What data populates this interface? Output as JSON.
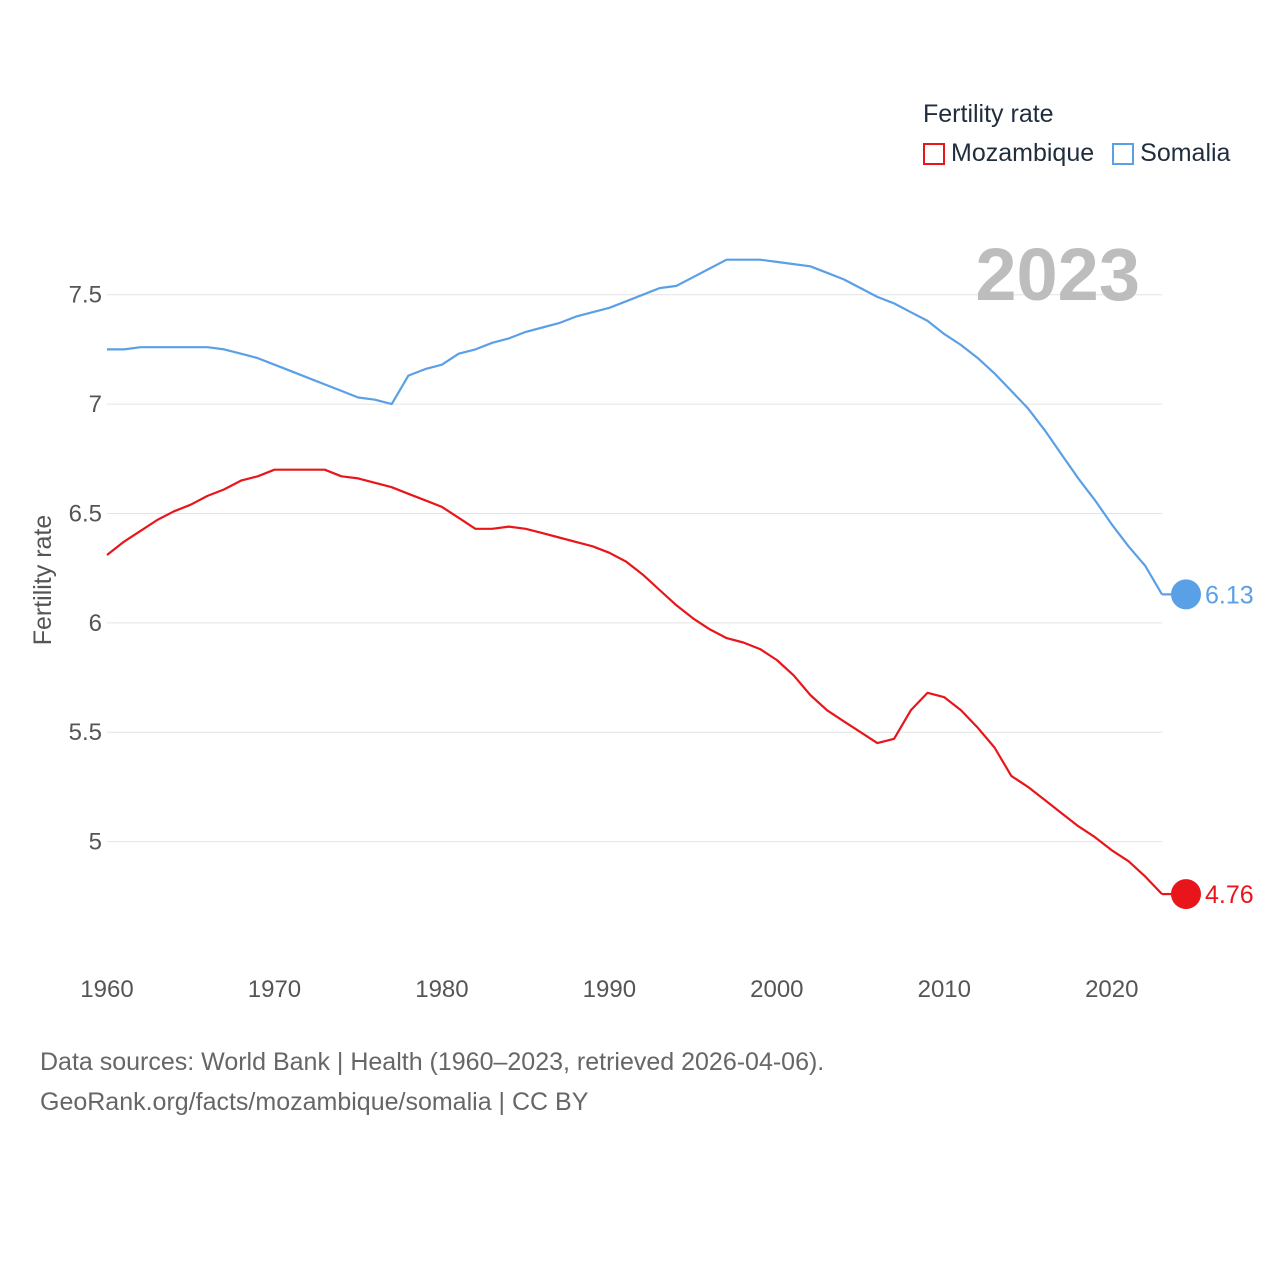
{
  "legend": {
    "title": "Fertility rate",
    "items": [
      {
        "name": "Mozambique",
        "color": "#e8161b"
      },
      {
        "name": "Somalia",
        "color": "#5aa0e6"
      }
    ]
  },
  "footer": {
    "line1": "Data sources: World Bank | Health (1960–2023, retrieved 2026-04-06).",
    "line2": "GeoRank.org/facts/mozambique/somalia | CC BY"
  },
  "chart_data": {
    "type": "line",
    "title": "Fertility rate",
    "year_label": "2023",
    "ylabel": "Fertility rate",
    "xlabel": "",
    "xlim": [
      1960,
      2023
    ],
    "ylim": [
      4.55,
      7.75
    ],
    "x_ticks": [
      1960,
      1970,
      1980,
      1990,
      2000,
      2010,
      2020
    ],
    "y_ticks": [
      5,
      5.5,
      6,
      6.5,
      7,
      7.5
    ],
    "y_tick_labels": [
      "5",
      "5.5",
      "6",
      "6.5",
      "7",
      "7.5"
    ],
    "grid": true,
    "legend_position": "top-right",
    "x": [
      1960,
      1961,
      1962,
      1963,
      1964,
      1965,
      1966,
      1967,
      1968,
      1969,
      1970,
      1971,
      1972,
      1973,
      1974,
      1975,
      1976,
      1977,
      1978,
      1979,
      1980,
      1981,
      1982,
      1983,
      1984,
      1985,
      1986,
      1987,
      1988,
      1989,
      1990,
      1991,
      1992,
      1993,
      1994,
      1995,
      1996,
      1997,
      1998,
      1999,
      2000,
      2001,
      2002,
      2003,
      2004,
      2005,
      2006,
      2007,
      2008,
      2009,
      2010,
      2011,
      2012,
      2013,
      2014,
      2015,
      2016,
      2017,
      2018,
      2019,
      2020,
      2021,
      2022,
      2023
    ],
    "series": [
      {
        "name": "Mozambique",
        "color": "#e8161b",
        "end_label": "4.76",
        "values": [
          6.31,
          6.37,
          6.42,
          6.47,
          6.51,
          6.54,
          6.58,
          6.61,
          6.65,
          6.67,
          6.7,
          6.7,
          6.7,
          6.7,
          6.67,
          6.66,
          6.64,
          6.62,
          6.59,
          6.56,
          6.53,
          6.48,
          6.43,
          6.43,
          6.44,
          6.43,
          6.41,
          6.39,
          6.37,
          6.35,
          6.32,
          6.28,
          6.22,
          6.15,
          6.08,
          6.02,
          5.97,
          5.93,
          5.91,
          5.88,
          5.83,
          5.76,
          5.67,
          5.6,
          5.55,
          5.5,
          5.45,
          5.47,
          5.6,
          5.68,
          5.66,
          5.6,
          5.52,
          5.43,
          5.3,
          5.25,
          5.19,
          5.13,
          5.07,
          5.02,
          4.96,
          4.91,
          4.84,
          4.76
        ]
      },
      {
        "name": "Somalia",
        "color": "#5aa0e6",
        "end_label": "6.13",
        "values": [
          7.25,
          7.25,
          7.26,
          7.26,
          7.26,
          7.26,
          7.26,
          7.25,
          7.23,
          7.21,
          7.18,
          7.15,
          7.12,
          7.09,
          7.06,
          7.03,
          7.02,
          7.0,
          7.13,
          7.16,
          7.18,
          7.23,
          7.25,
          7.28,
          7.3,
          7.33,
          7.35,
          7.37,
          7.4,
          7.42,
          7.44,
          7.47,
          7.5,
          7.53,
          7.54,
          7.58,
          7.62,
          7.66,
          7.66,
          7.66,
          7.65,
          7.64,
          7.63,
          7.6,
          7.57,
          7.53,
          7.49,
          7.46,
          7.42,
          7.38,
          7.32,
          7.27,
          7.21,
          7.14,
          7.06,
          6.98,
          6.88,
          6.77,
          6.66,
          6.56,
          6.45,
          6.35,
          6.26,
          6.13
        ]
      }
    ]
  }
}
